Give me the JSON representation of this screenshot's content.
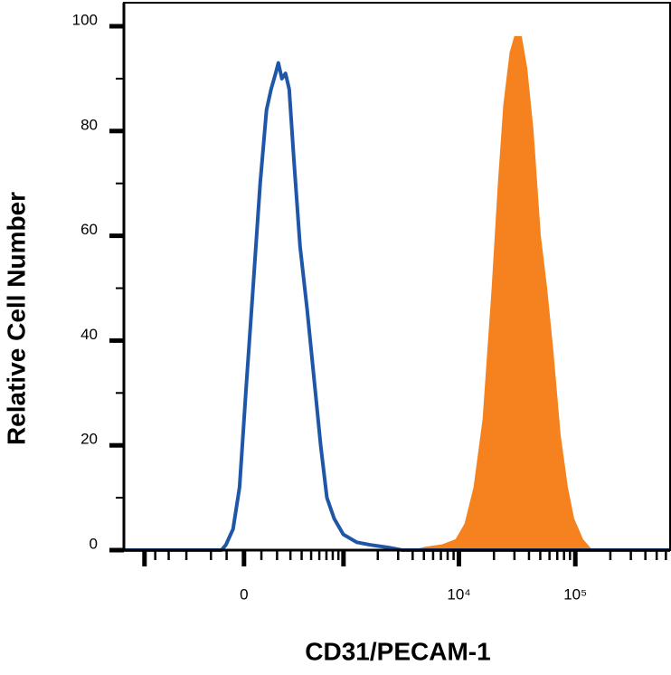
{
  "chart_data": {
    "type": "line",
    "xlabel": "CD31/PECAM-1",
    "ylabel": "Relative Cell Number",
    "xscale": "biexponential",
    "xlim": [
      -1520,
      652000
    ],
    "ylim": [
      0,
      100
    ],
    "yticks": [
      0,
      20,
      40,
      60,
      80,
      100
    ],
    "yminorticks": [
      10,
      30,
      50,
      70,
      90
    ],
    "xticks": [
      0,
      {
        "value": 10000,
        "label": "10⁴"
      },
      {
        "value": 100000,
        "label": "10⁵"
      }
    ],
    "xmajorticks": [
      -1000,
      0,
      1000,
      10000,
      100000
    ],
    "xminorticks": [
      -800,
      -600,
      -400,
      -200,
      -100,
      100,
      200,
      300,
      400,
      500,
      600,
      700,
      800,
      900,
      2000,
      3000,
      4000,
      5000,
      6000,
      7000,
      8000,
      9000,
      20000,
      30000,
      40000,
      50000,
      60000,
      70000,
      80000,
      90000,
      200000,
      300000,
      400000,
      500000,
      600000
    ],
    "series": [
      {
        "color": "#f5821f",
        "fill": true,
        "x": [
          -1520,
          4218,
          5073,
          7239,
          9462,
          11315,
          13538,
          16188,
          19352,
          21917,
          24396,
          27645,
          30239,
          34257,
          38133,
          43206,
          49847,
          56487,
          64011,
          73815,
          85158,
          96501,
          115397,
          137969,
          652000
        ],
        "values": [
          0,
          0,
          0.5,
          1,
          2,
          5,
          12,
          25,
          50,
          70,
          85,
          95,
          98,
          98,
          92,
          80,
          60,
          50,
          38,
          22,
          12,
          6,
          2,
          0,
          0
        ]
      },
      {
        "color": "#1f56a8",
        "fill": false,
        "x": [
          -1520,
          -131,
          -104,
          -62,
          -25,
          10,
          51,
          93,
          131,
          160,
          190,
          209,
          234,
          261,
          290,
          328,
          385,
          456,
          539,
          618,
          707,
          826,
          995,
          1311,
          1724,
          2474,
          3249,
          652000
        ],
        "values": [
          0,
          0,
          1,
          4,
          12,
          30,
          50,
          70,
          84,
          88,
          91,
          93,
          90,
          91,
          88,
          75,
          58,
          46,
          32,
          20,
          10,
          6,
          3,
          1.5,
          1,
          0.5,
          0,
          0
        ]
      }
    ]
  }
}
